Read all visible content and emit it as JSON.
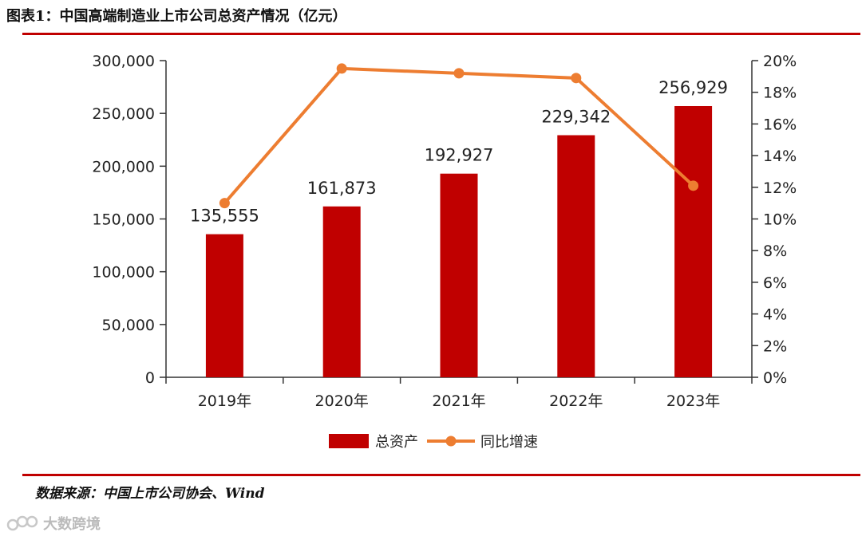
{
  "header": {
    "title": "图表1：中国高端制造业上市公司总资产情况（亿元）"
  },
  "footer": {
    "source": "数据来源：中国上市公司协会、Wind",
    "watermark": "大数跨境"
  },
  "chart_data": {
    "type": "bar",
    "categories": [
      "2019年",
      "2020年",
      "2021年",
      "2022年",
      "2023年"
    ],
    "series": [
      {
        "name": "总资产",
        "type": "bar",
        "axis": "left",
        "color": "#c00000",
        "values": [
          135555,
          161873,
          192927,
          229342,
          256929
        ],
        "labels": [
          "135,555",
          "161,873",
          "192,927",
          "229,342",
          "256,929"
        ]
      },
      {
        "name": "同比增速",
        "type": "line",
        "axis": "right",
        "color": "#ed7d31",
        "values": [
          11.0,
          19.5,
          19.2,
          18.9,
          12.1
        ]
      }
    ],
    "ylim": [
      0,
      300000
    ],
    "yticks": [
      0,
      50000,
      100000,
      150000,
      200000,
      250000,
      300000
    ],
    "ytick_labels": [
      "0",
      "50,000",
      "100,000",
      "150,000",
      "200,000",
      "250,000",
      "300,000"
    ],
    "y2lim": [
      0,
      20
    ],
    "y2ticks": [
      0,
      2,
      4,
      6,
      8,
      10,
      12,
      14,
      16,
      18,
      20
    ],
    "y2tick_labels": [
      "0%",
      "2%",
      "4%",
      "6%",
      "8%",
      "10%",
      "12%",
      "14%",
      "16%",
      "18%",
      "20%"
    ],
    "grid": false,
    "legend": "bottom"
  }
}
